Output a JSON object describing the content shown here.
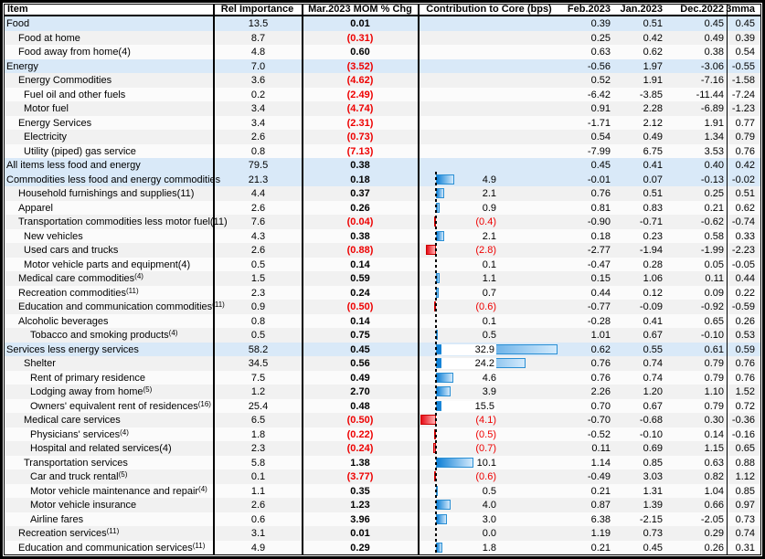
{
  "header": {
    "item": "Item",
    "rel": "Rel Importance",
    "mar": "Mar.2023 MOM % Chg",
    "contrib": "Contribution to Core (bps)",
    "feb": "Feb.2023",
    "jan": "Jan.2023",
    "dec": "Dec.2022",
    "mma": "3mma"
  },
  "colors": {
    "section_row_bg": "#d9e9f8",
    "stripe_gray_bg": "#f1f1f1",
    "stripe_white_bg": "#fbfbfb",
    "negative_text": "#ee0000",
    "bar_positive_dark": "#0d7fd6",
    "bar_positive_light": "#d3eafc",
    "bar_negative_dark": "#e60b17",
    "bar_negative_light": "#ffb0b0"
  },
  "chart_data": {
    "type": "table",
    "title": "CPI components: relative importance, Mar.2023 MOM % change, contribution to core (bps), prior months and 3-month moving average",
    "columns": [
      "Item",
      "Rel Importance",
      "Mar.2023 MOM % Chg",
      "Contribution to Core (bps)",
      "Feb.2023",
      "Jan.2023",
      "Dec.2022",
      "3mma"
    ],
    "bar_column": "Contribution to Core (bps)",
    "bar_units": "bps",
    "negative_format": "parentheses_red",
    "rows": [
      {
        "label": "Food",
        "sup": "",
        "indent": 0,
        "shade": "blue",
        "rel": "13.5",
        "mar": "0.01",
        "bps": null,
        "bps_label": "",
        "feb": "0.39",
        "jan": "0.51",
        "dec": "0.45",
        "mma": "0.45"
      },
      {
        "label": "Food at home",
        "sup": "",
        "indent": 1,
        "shade": "gray",
        "rel": "8.7",
        "mar": "(0.31)",
        "bps": null,
        "bps_label": "",
        "feb": "0.25",
        "jan": "0.42",
        "dec": "0.49",
        "mma": "0.39"
      },
      {
        "label": "Food away from home(4)",
        "sup": "",
        "indent": 1,
        "shade": "white",
        "rel": "4.8",
        "mar": "0.60",
        "bps": null,
        "bps_label": "",
        "feb": "0.63",
        "jan": "0.62",
        "dec": "0.38",
        "mma": "0.54"
      },
      {
        "label": "Energy",
        "sup": "",
        "indent": 0,
        "shade": "blue",
        "rel": "7.0",
        "mar": "(3.52)",
        "bps": null,
        "bps_label": "",
        "feb": "-0.56",
        "jan": "1.97",
        "dec": "-3.06",
        "mma": "-0.55"
      },
      {
        "label": "Energy Commodities",
        "sup": "",
        "indent": 1,
        "shade": "gray",
        "rel": "3.6",
        "mar": "(4.62)",
        "bps": null,
        "bps_label": "",
        "feb": "0.52",
        "jan": "1.91",
        "dec": "-7.16",
        "mma": "-1.58"
      },
      {
        "label": "Fuel oil and other fuels",
        "sup": "",
        "indent": 2,
        "shade": "white",
        "rel": "0.2",
        "mar": "(2.49)",
        "bps": null,
        "bps_label": "",
        "feb": "-6.42",
        "jan": "-3.85",
        "dec": "-11.44",
        "mma": "-7.24"
      },
      {
        "label": "Motor fuel",
        "sup": "",
        "indent": 2,
        "shade": "gray",
        "rel": "3.4",
        "mar": "(4.74)",
        "bps": null,
        "bps_label": "",
        "feb": "0.91",
        "jan": "2.28",
        "dec": "-6.89",
        "mma": "-1.23"
      },
      {
        "label": "Energy Services",
        "sup": "",
        "indent": 1,
        "shade": "white",
        "rel": "3.4",
        "mar": "(2.31)",
        "bps": null,
        "bps_label": "",
        "feb": "-1.71",
        "jan": "2.12",
        "dec": "1.91",
        "mma": "0.77"
      },
      {
        "label": "Electricity",
        "sup": "",
        "indent": 2,
        "shade": "gray",
        "rel": "2.6",
        "mar": "(0.73)",
        "bps": null,
        "bps_label": "",
        "feb": "0.54",
        "jan": "0.49",
        "dec": "1.34",
        "mma": "0.79"
      },
      {
        "label": "Utility (piped) gas service",
        "sup": "",
        "indent": 2,
        "shade": "white",
        "rel": "0.8",
        "mar": "(7.13)",
        "bps": null,
        "bps_label": "",
        "feb": "-7.99",
        "jan": "6.75",
        "dec": "3.53",
        "mma": "0.76"
      },
      {
        "label": "All items less food and energy",
        "sup": "",
        "indent": 0,
        "shade": "blue",
        "rel": "79.5",
        "mar": "0.38",
        "bps": null,
        "bps_label": "",
        "feb": "0.45",
        "jan": "0.41",
        "dec": "0.40",
        "mma": "0.42"
      },
      {
        "label": "Commodities less food and energy commodities",
        "sup": "",
        "indent": 0,
        "shade": "blue",
        "rel": "21.3",
        "mar": "0.18",
        "bps": 4.9,
        "bps_label": "4.9",
        "feb": "-0.01",
        "jan": "0.07",
        "dec": "-0.13",
        "mma": "-0.02"
      },
      {
        "label": "Household furnishings and supplies(11)",
        "sup": "",
        "indent": 1,
        "shade": "gray",
        "rel": "4.4",
        "mar": "0.37",
        "bps": 2.1,
        "bps_label": "2.1",
        "feb": "0.76",
        "jan": "0.51",
        "dec": "0.25",
        "mma": "0.51"
      },
      {
        "label": "Apparel",
        "sup": "",
        "indent": 1,
        "shade": "white",
        "rel": "2.6",
        "mar": "0.26",
        "bps": 0.9,
        "bps_label": "0.9",
        "feb": "0.81",
        "jan": "0.83",
        "dec": "0.21",
        "mma": "0.62"
      },
      {
        "label": "Transportation commodities less motor fuel(11)",
        "sup": "",
        "indent": 1,
        "shade": "gray",
        "rel": "7.6",
        "mar": "(0.04)",
        "bps": -0.4,
        "bps_label": "(0.4)",
        "feb": "-0.90",
        "jan": "-0.71",
        "dec": "-0.62",
        "mma": "-0.74"
      },
      {
        "label": "New vehicles",
        "sup": "",
        "indent": 2,
        "shade": "white",
        "rel": "4.3",
        "mar": "0.38",
        "bps": 2.1,
        "bps_label": "2.1",
        "feb": "0.18",
        "jan": "0.23",
        "dec": "0.58",
        "mma": "0.33"
      },
      {
        "label": "Used cars and trucks",
        "sup": "",
        "indent": 2,
        "shade": "gray",
        "rel": "2.6",
        "mar": "(0.88)",
        "bps": -2.8,
        "bps_label": "(2.8)",
        "feb": "-2.77",
        "jan": "-1.94",
        "dec": "-1.99",
        "mma": "-2.23"
      },
      {
        "label": "Motor vehicle parts and equipment(4)",
        "sup": "",
        "indent": 2,
        "shade": "white",
        "rel": "0.5",
        "mar": "0.14",
        "bps": 0.1,
        "bps_label": "0.1",
        "feb": "-0.47",
        "jan": "0.28",
        "dec": "0.05",
        "mma": "-0.05"
      },
      {
        "label": "Medical care commodities",
        "sup": "(4)",
        "indent": 1,
        "shade": "gray",
        "rel": "1.5",
        "mar": "0.59",
        "bps": 1.1,
        "bps_label": "1.1",
        "feb": "0.15",
        "jan": "1.06",
        "dec": "0.11",
        "mma": "0.44"
      },
      {
        "label": "Recreation commodities",
        "sup": "(11)",
        "indent": 1,
        "shade": "white",
        "rel": "2.3",
        "mar": "0.24",
        "bps": 0.7,
        "bps_label": "0.7",
        "feb": "0.44",
        "jan": "0.12",
        "dec": "0.09",
        "mma": "0.22"
      },
      {
        "label": "Education and communication commodities",
        "sup": "(11)",
        "indent": 1,
        "shade": "gray",
        "rel": "0.9",
        "mar": "(0.50)",
        "bps": -0.6,
        "bps_label": "(0.6)",
        "feb": "-0.77",
        "jan": "-0.09",
        "dec": "-0.92",
        "mma": "-0.59"
      },
      {
        "label": "Alcoholic beverages",
        "sup": "",
        "indent": 1,
        "shade": "white",
        "rel": "0.8",
        "mar": "0.14",
        "bps": 0.1,
        "bps_label": "0.1",
        "feb": "-0.28",
        "jan": "0.41",
        "dec": "0.65",
        "mma": "0.26"
      },
      {
        "label": "Tobacco and smoking products",
        "sup": "(4)",
        "indent": 3,
        "shade": "gray",
        "rel": "0.5",
        "mar": "0.75",
        "bps": 0.5,
        "bps_label": "0.5",
        "feb": "1.01",
        "jan": "0.67",
        "dec": "-0.10",
        "mma": "0.53"
      },
      {
        "label": "Services less energy services",
        "sup": "",
        "indent": 0,
        "shade": "blue",
        "rel": "58.2",
        "mar": "0.45",
        "bps": 32.9,
        "bps_label": "32.9",
        "feb": "0.62",
        "jan": "0.55",
        "dec": "0.61",
        "mma": "0.59"
      },
      {
        "label": "Shelter",
        "sup": "",
        "indent": 2,
        "shade": "gray",
        "rel": "34.5",
        "mar": "0.56",
        "bps": 24.2,
        "bps_label": "24.2",
        "feb": "0.76",
        "jan": "0.74",
        "dec": "0.79",
        "mma": "0.76"
      },
      {
        "label": "Rent of primary residence",
        "sup": "",
        "indent": 3,
        "shade": "white",
        "rel": "7.5",
        "mar": "0.49",
        "bps": 4.6,
        "bps_label": "4.6",
        "feb": "0.76",
        "jan": "0.74",
        "dec": "0.79",
        "mma": "0.76"
      },
      {
        "label": "Lodging away from home",
        "sup": "(5)",
        "indent": 3,
        "shade": "gray",
        "rel": "1.2",
        "mar": "2.70",
        "bps": 3.9,
        "bps_label": "3.9",
        "feb": "2.26",
        "jan": "1.20",
        "dec": "1.10",
        "mma": "1.52"
      },
      {
        "label": "Owners' equivalent rent of residences",
        "sup": "(16)",
        "indent": 3,
        "shade": "white",
        "rel": "25.4",
        "mar": "0.48",
        "bps": 15.5,
        "bps_label": "15.5",
        "feb": "0.70",
        "jan": "0.67",
        "dec": "0.79",
        "mma": "0.72"
      },
      {
        "label": "Medical care services",
        "sup": "",
        "indent": 2,
        "shade": "gray",
        "rel": "6.5",
        "mar": "(0.50)",
        "bps": -4.1,
        "bps_label": "(4.1)",
        "feb": "-0.70",
        "jan": "-0.68",
        "dec": "0.30",
        "mma": "-0.36"
      },
      {
        "label": "Physicians' services",
        "sup": "(4)",
        "indent": 3,
        "shade": "white",
        "rel": "1.8",
        "mar": "(0.22)",
        "bps": -0.5,
        "bps_label": "(0.5)",
        "feb": "-0.52",
        "jan": "-0.10",
        "dec": "0.14",
        "mma": "-0.16"
      },
      {
        "label": "Hospital and related services(4)",
        "sup": "",
        "indent": 3,
        "shade": "gray",
        "rel": "2.3",
        "mar": "(0.24)",
        "bps": -0.7,
        "bps_label": "(0.7)",
        "feb": "0.11",
        "jan": "0.69",
        "dec": "1.15",
        "mma": "0.65"
      },
      {
        "label": "Transportation services",
        "sup": "",
        "indent": 2,
        "shade": "white",
        "rel": "5.8",
        "mar": "1.38",
        "bps": 10.1,
        "bps_label": "10.1",
        "feb": "1.14",
        "jan": "0.85",
        "dec": "0.63",
        "mma": "0.88"
      },
      {
        "label": "Car and truck rental",
        "sup": "(5)",
        "indent": 3,
        "shade": "gray",
        "rel": "0.1",
        "mar": "(3.77)",
        "bps": -0.6,
        "bps_label": "(0.6)",
        "feb": "-0.49",
        "jan": "3.03",
        "dec": "0.82",
        "mma": "1.12"
      },
      {
        "label": "Motor vehicle maintenance and repair",
        "sup": "(4)",
        "indent": 3,
        "shade": "white",
        "rel": "1.1",
        "mar": "0.35",
        "bps": 0.5,
        "bps_label": "0.5",
        "feb": "0.21",
        "jan": "1.31",
        "dec": "1.04",
        "mma": "0.85"
      },
      {
        "label": "Motor vehicle insurance",
        "sup": "",
        "indent": 3,
        "shade": "gray",
        "rel": "2.6",
        "mar": "1.23",
        "bps": 4.0,
        "bps_label": "4.0",
        "feb": "0.87",
        "jan": "1.39",
        "dec": "0.66",
        "mma": "0.97"
      },
      {
        "label": "Airline fares",
        "sup": "",
        "indent": 3,
        "shade": "white",
        "rel": "0.6",
        "mar": "3.96",
        "bps": 3.0,
        "bps_label": "3.0",
        "feb": "6.38",
        "jan": "-2.15",
        "dec": "-2.05",
        "mma": "0.73"
      },
      {
        "label": "Recreation services",
        "sup": "(11)",
        "indent": 1,
        "shade": "gray",
        "rel": "3.1",
        "mar": "0.01",
        "bps": 0.0,
        "bps_label": "0.0",
        "feb": "1.19",
        "jan": "0.73",
        "dec": "0.29",
        "mma": "0.74"
      },
      {
        "label": "Education and communication services",
        "sup": "(11)",
        "indent": 1,
        "shade": "white",
        "rel": "4.9",
        "mar": "0.29",
        "bps": 1.8,
        "bps_label": "1.8",
        "feb": "0.21",
        "jan": "0.45",
        "dec": "0.26",
        "mma": "0.31"
      }
    ]
  }
}
